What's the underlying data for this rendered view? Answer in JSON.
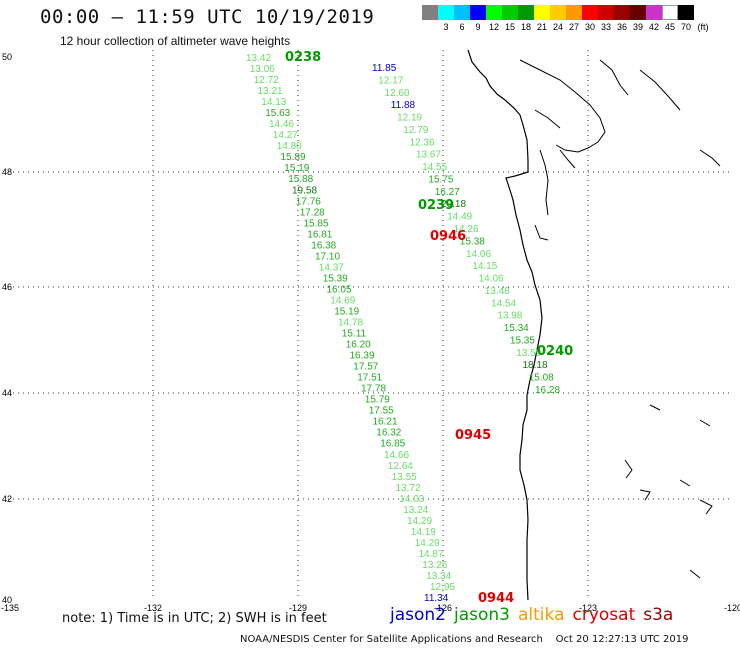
{
  "header": {
    "title": "00:00 – 11:59 UTC 10/19/2019",
    "subtitle": "12 hour collection of altimeter wave heights"
  },
  "colorbar": {
    "colors": [
      "#808080",
      "#00ffff",
      "#00bfff",
      "#0000ff",
      "#00ff00",
      "#00cc00",
      "#009900",
      "#ffff00",
      "#ffcc00",
      "#ff9900",
      "#ff0000",
      "#cc0000",
      "#990000",
      "#660000",
      "#cc33cc",
      "#ffffff",
      "#000000"
    ],
    "labels": [
      "",
      "3",
      "6",
      "9",
      "12",
      "15",
      "18",
      "21",
      "24",
      "27",
      "30",
      "33",
      "36",
      "39",
      "42",
      "45",
      "70",
      "(ft)"
    ]
  },
  "axes": {
    "lon_ticks": [
      "-135",
      "-132",
      "-129",
      "-126",
      "-123",
      "-120"
    ],
    "lat_ticks": [
      "50",
      "48",
      "46",
      "44",
      "42",
      "40"
    ]
  },
  "passes": [
    {
      "label": "0238",
      "color": "#009900"
    },
    {
      "label": "0239",
      "color": "#009900"
    },
    {
      "label": "0240",
      "color": "#009900"
    },
    {
      "label": "0946",
      "color": "#dd0000"
    },
    {
      "label": "0945",
      "color": "#dd0000"
    },
    {
      "label": "0944",
      "color": "#dd0000"
    }
  ],
  "track_jason3_west": [
    "13.42",
    "13.06",
    "12.72",
    "13.21",
    "14.13",
    "15.63",
    "14.46",
    "14.27",
    "14.80",
    "15.89",
    "15.19",
    "15.88",
    "19.58",
    "17.76",
    "17.28",
    "15.85",
    "16.81",
    "16.38",
    "17.10",
    "14.37",
    "15.39",
    "16.05",
    "14.69",
    "15.19",
    "14.78",
    "15.11",
    "16.20",
    "16.39",
    "17.57",
    "17.51",
    "17.78",
    "15.79",
    "17.55",
    "16.21",
    "16.32",
    "16.85",
    "14.66",
    "12.64",
    "13.55",
    "13.72",
    "14.03",
    "13.24",
    "14.29",
    "14.19",
    "14.29",
    "14.87",
    "13.25",
    "13.34",
    "12.95"
  ],
  "track_jason3_east": [
    "11.85",
    "12.17",
    "12.60",
    "11.88",
    "12.19",
    "12.79",
    "12.36",
    "13.67",
    "14.55",
    "15.75",
    "16.27",
    "20.18",
    "14.49",
    "14.26",
    "15.38",
    "14.06",
    "14.15",
    "14.06",
    "13.48",
    "14.54",
    "13.98",
    "15.34",
    "15.35",
    "13.59",
    "18.18",
    "15.08",
    "16.28"
  ],
  "track_jason2_extra": [
    "11.34"
  ],
  "note": "note: 1) Time is in UTC; 2) SWH is in feet",
  "legend": [
    {
      "name": "jason2",
      "color": "#0000cc"
    },
    {
      "name": "jason3",
      "color": "#009900"
    },
    {
      "name": "altika",
      "color": "#ff9900"
    },
    {
      "name": "cryosat",
      "color": "#dd0000"
    },
    {
      "name": "s3a",
      "color": "#990000"
    }
  ],
  "credit": "NOAA/NESDIS Center for Satellite Applications and Research    Oct 20 12:27:13 UTC 2019"
}
